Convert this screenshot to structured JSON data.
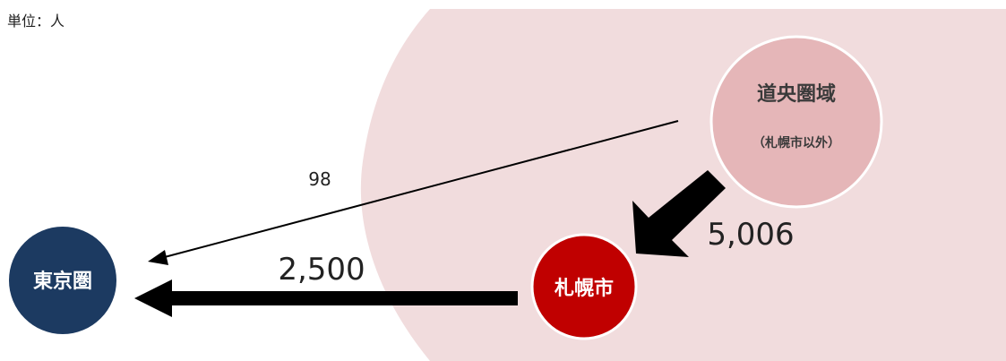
{
  "unit_label": "単位：人",
  "colors": {
    "region_background": "#f1dcdd",
    "doo_node": "#e5b6b8",
    "sapporo_node": "#c00000",
    "tokyo_node": "#1c3a61",
    "arrow": "#000000",
    "node_text_dark": "#3a3a3a",
    "node_text_light": "#ffffff"
  },
  "nodes": {
    "doo": {
      "label": "道央圏域",
      "sublabel": "（札幌市以外）"
    },
    "sapporo": {
      "label": "札幌市"
    },
    "tokyo": {
      "label": "東京圏"
    }
  },
  "flows": {
    "doo_to_sapporo": {
      "value": 5006,
      "label": "5,006"
    },
    "sapporo_to_tokyo": {
      "value": 2500,
      "label": "2,500"
    },
    "doo_to_tokyo": {
      "value": 98,
      "label": "98"
    }
  }
}
